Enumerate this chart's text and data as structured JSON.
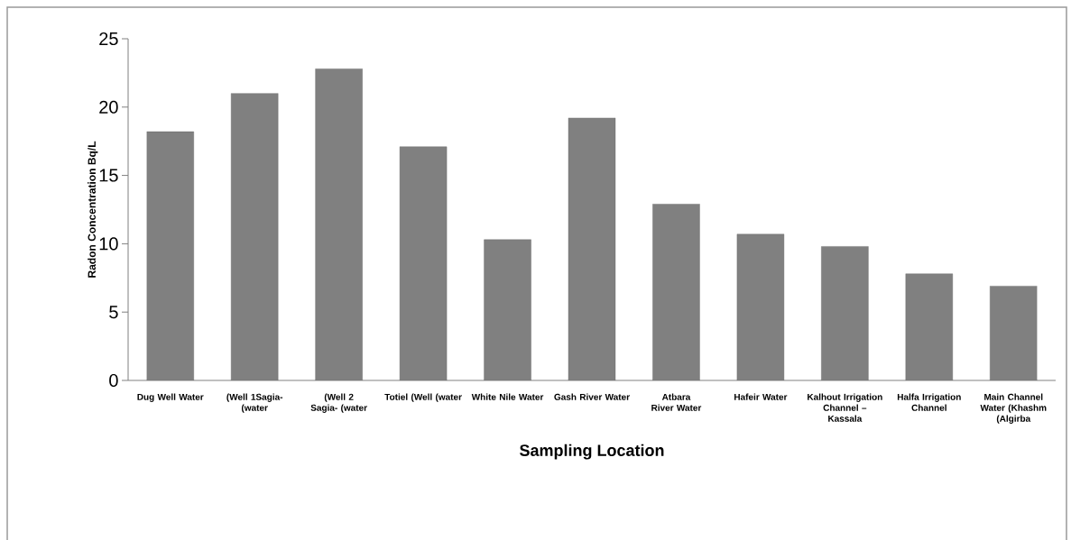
{
  "chart_data": {
    "type": "bar",
    "xlabel": "Sampling Location",
    "ylabel": "Radon Concentration  Bq/L",
    "categories": [
      "Dug Well Water",
      "(Well 1Sagia- (water",
      "(Well 2 Sagia- (water",
      "Totiel (Well (water",
      "White Nile Water",
      "Gash River Water",
      "Atbara River Water",
      "Hafeir Water",
      "Kalhout Irrigation Channel – Kassala",
      "Halfa Irrigation Channel",
      "Main Channel Water (Khashm (Algirba"
    ],
    "values": [
      18.2,
      21,
      22.8,
      17.1,
      10.3,
      19.2,
      12.9,
      10.7,
      9.8,
      7.8,
      6.9
    ],
    "color": "#808080",
    "ylim": [
      0,
      25
    ],
    "yticks": [
      0,
      5,
      10,
      15,
      20,
      25
    ],
    "grid": false,
    "legend": false
  }
}
